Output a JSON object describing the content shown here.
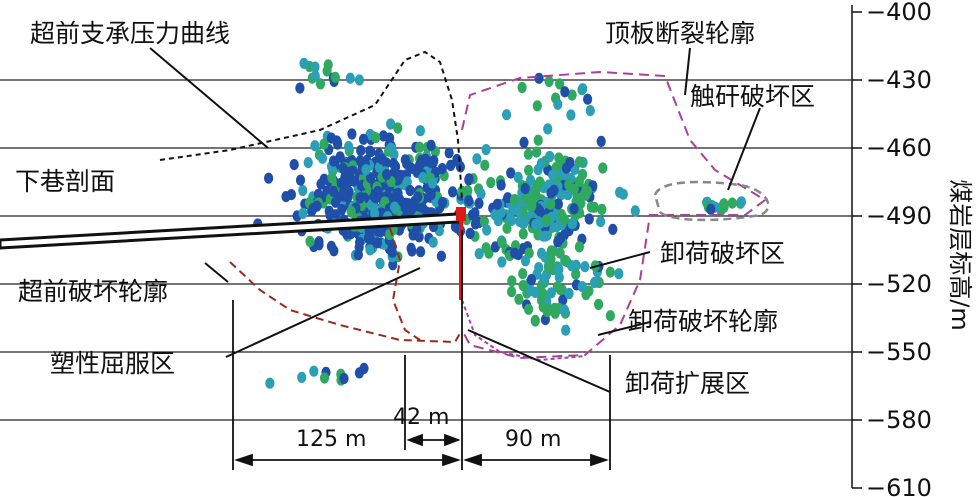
{
  "labels": {
    "abutment_curve": "超前支承压力曲线",
    "roof_fracture": "顶板断裂轮廓",
    "roof_contact": "触矸破坏区",
    "roadway_section": "下巷剖面",
    "unload_zone": "卸荷破坏区",
    "advance_contour": "超前破坏轮廓",
    "unload_contour": "卸荷破坏轮廓",
    "plastic_zone": "塑性屈服区",
    "unload_ext_zone": "卸荷扩展区"
  },
  "dimensions": {
    "d1": "125 m",
    "d2": "42 m",
    "d3": "90 m"
  },
  "axis": {
    "ylabel": "煤岩层标高/m",
    "ticks": [
      "−400",
      "−430",
      "−460",
      "−490",
      "−520",
      "−550",
      "−580",
      "−610"
    ]
  },
  "colors": {
    "event_dark": "#1f4fa8",
    "event_teal": "#2a9fb5",
    "event_green": "#2fa860",
    "dashed_black": "#111111",
    "dashed_purple": "#a8409c",
    "dashed_brown": "#9a2a1a",
    "dashed_gray": "#888888",
    "face_red": "#e01818"
  }
}
